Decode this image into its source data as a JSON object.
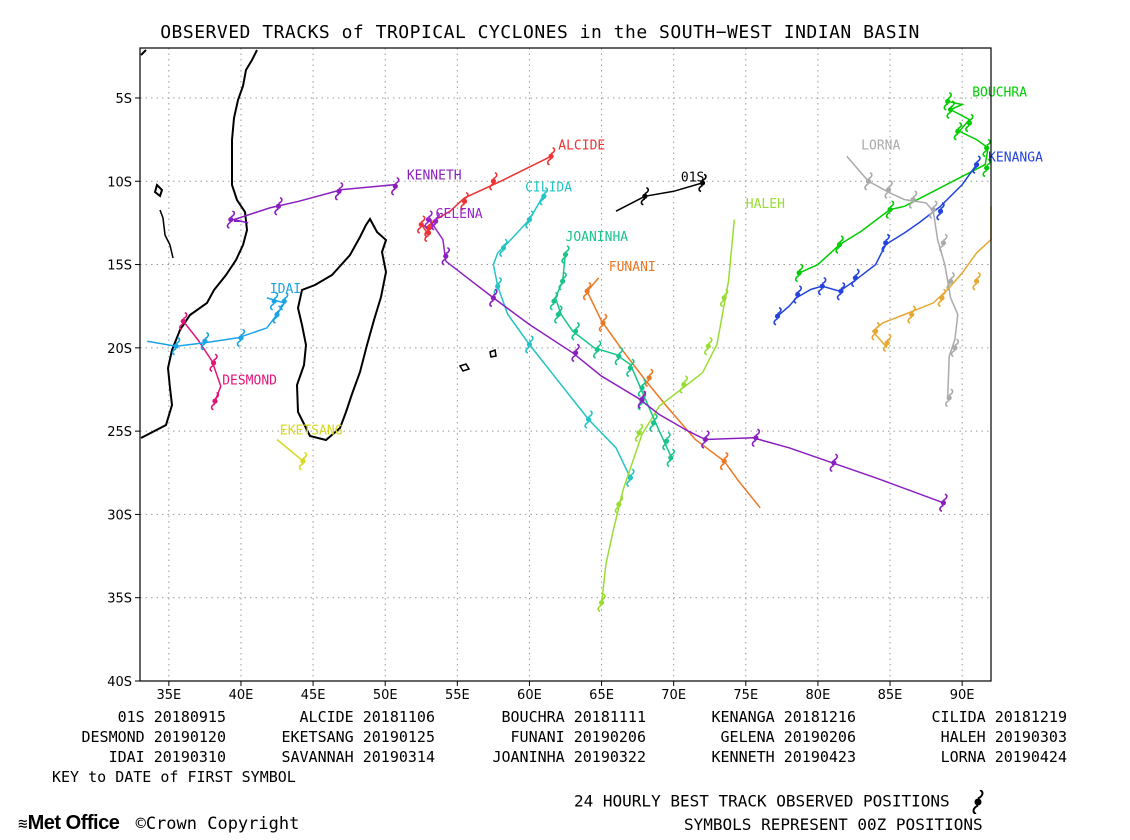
{
  "title": "OBSERVED TRACKS of TROPICAL CYCLONES in the SOUTH−WEST INDIAN BASIN",
  "axes": {
    "lon_range": [
      33,
      92
    ],
    "lat_range": [
      -40,
      -2
    ],
    "lon_ticks": [
      {
        "v": 35,
        "label": "35E"
      },
      {
        "v": 40,
        "label": "40E"
      },
      {
        "v": 45,
        "label": "45E"
      },
      {
        "v": 50,
        "label": "50E"
      },
      {
        "v": 55,
        "label": "55E"
      },
      {
        "v": 60,
        "label": "60E"
      },
      {
        "v": 65,
        "label": "65E"
      },
      {
        "v": 70,
        "label": "70E"
      },
      {
        "v": 75,
        "label": "75E"
      },
      {
        "v": 80,
        "label": "80E"
      },
      {
        "v": 85,
        "label": "85E"
      },
      {
        "v": 90,
        "label": "90E"
      }
    ],
    "lat_ticks": [
      {
        "v": -5,
        "label": "5S"
      },
      {
        "v": -10,
        "label": "10S"
      },
      {
        "v": -15,
        "label": "15S"
      },
      {
        "v": -20,
        "label": "20S"
      },
      {
        "v": -25,
        "label": "25S"
      },
      {
        "v": -30,
        "label": "30S"
      },
      {
        "v": -35,
        "label": "35S"
      },
      {
        "v": -40,
        "label": "40S"
      }
    ],
    "grid": "dotted"
  },
  "chart_data": {
    "type": "map-tracks",
    "storms": [
      {
        "name": "01S",
        "color": "#000000",
        "label_at": [
          70.5,
          -9.7
        ],
        "track": [
          [
            66,
            -11.8
          ],
          [
            68,
            -10.9
          ],
          [
            70,
            -10.6
          ],
          [
            72,
            -10.1
          ]
        ],
        "symbols": [
          [
            68,
            -10.9
          ],
          [
            72,
            -10.1
          ]
        ]
      },
      {
        "name": "ALCIDE",
        "color": "#ee3333",
        "label_at": [
          62,
          -7.8
        ],
        "track": [
          [
            61.5,
            -8.5
          ],
          [
            58,
            -10
          ],
          [
            55.5,
            -11
          ],
          [
            54.5,
            -11.8
          ],
          [
            53.5,
            -12.3
          ],
          [
            53,
            -12.8
          ],
          [
            52.5,
            -12.6
          ],
          [
            53,
            -13.2
          ]
        ],
        "symbols": [
          [
            61.5,
            -8.5
          ],
          [
            57.5,
            -10
          ],
          [
            55.5,
            -11.2
          ],
          [
            53,
            -12.8
          ],
          [
            52.5,
            -12.6
          ],
          [
            53,
            -13.1
          ]
        ]
      },
      {
        "name": "BOUCHRA",
        "color": "#00cc00",
        "label_at": [
          90.7,
          -4.6
        ],
        "track": [
          [
            89,
            -5.2
          ],
          [
            90,
            -5.4
          ],
          [
            89.2,
            -5.7
          ],
          [
            90.5,
            -6.3
          ],
          [
            89.8,
            -7
          ],
          [
            91,
            -7.5
          ],
          [
            91.8,
            -8
          ],
          [
            91.6,
            -9
          ],
          [
            86,
            -11.5
          ],
          [
            85,
            -11.7
          ],
          [
            83,
            -13
          ],
          [
            81.5,
            -13.8
          ],
          [
            80,
            -15
          ],
          [
            78.7,
            -15.5
          ]
        ],
        "symbols": [
          [
            89,
            -5.2
          ],
          [
            89.2,
            -5.7
          ],
          [
            90.5,
            -6.5
          ],
          [
            89.7,
            -7
          ],
          [
            91.7,
            -8
          ],
          [
            91.7,
            -9.2
          ],
          [
            85,
            -11.7
          ],
          [
            81.5,
            -13.8
          ],
          [
            78.7,
            -15.5
          ]
        ]
      },
      {
        "name": "CILIDA",
        "color": "#22c4c4",
        "label_at": [
          59.7,
          -10.3
        ],
        "track": [
          [
            61,
            -10.8
          ],
          [
            60,
            -12.3
          ],
          [
            58.5,
            -13.7
          ],
          [
            57.8,
            -14.3
          ],
          [
            57.5,
            -15
          ],
          [
            57.8,
            -16.3
          ],
          [
            58.5,
            -18
          ],
          [
            60,
            -19.8
          ],
          [
            62,
            -22
          ],
          [
            64.1,
            -24.3
          ],
          [
            66,
            -26
          ],
          [
            67,
            -27.8
          ]
        ],
        "symbols": [
          [
            61,
            -10.9
          ],
          [
            60,
            -12.3
          ],
          [
            58.2,
            -14
          ],
          [
            57.8,
            -16.3
          ],
          [
            60,
            -19.8
          ],
          [
            64.1,
            -24.3
          ],
          [
            67,
            -27.8
          ]
        ]
      },
      {
        "name": "DESMOND",
        "color": "#e0157a",
        "label_at": [
          38.7,
          -21.9
        ],
        "track": [
          [
            36,
            -18.4
          ],
          [
            37,
            -19.5
          ],
          [
            38,
            -20.8
          ],
          [
            38.6,
            -22.3
          ],
          [
            38.2,
            -23.2
          ]
        ],
        "symbols": [
          [
            36,
            -18.4
          ],
          [
            38.1,
            -20.9
          ],
          [
            38.2,
            -23.2
          ]
        ]
      },
      {
        "name": "EKETSANG",
        "color": "#d8d820",
        "label_at": [
          42.7,
          -24.9
        ],
        "track": [
          [
            42.5,
            -25.5
          ],
          [
            44.3,
            -26.8
          ]
        ],
        "symbols": [
          [
            44.3,
            -26.8
          ]
        ]
      },
      {
        "name": "FUNANI",
        "color": "#ee7722",
        "label_at": [
          65.5,
          -15.1
        ],
        "track": [
          [
            64.8,
            -15.8
          ],
          [
            64,
            -16.6
          ],
          [
            65,
            -18.4
          ],
          [
            66.5,
            -20.2
          ],
          [
            68,
            -21.9
          ],
          [
            69.5,
            -23.5
          ],
          [
            71.5,
            -25.5
          ],
          [
            73.5,
            -26.8
          ],
          [
            74.5,
            -28
          ],
          [
            76,
            -29.6
          ]
        ],
        "symbols": [
          [
            64,
            -16.6
          ],
          [
            65.1,
            -18.5
          ],
          [
            68.3,
            -21.8
          ],
          [
            73.5,
            -26.8
          ]
        ]
      },
      {
        "name": "GELENA",
        "color": "#9922cc",
        "label_at": [
          53.5,
          -11.9
        ],
        "track": [
          [
            53,
            -12.3
          ],
          [
            53.3,
            -12.6
          ],
          [
            54,
            -13.5
          ],
          [
            54.2,
            -14.8
          ]
        ],
        "symbols": [
          [
            53,
            -12.3
          ],
          [
            53.5,
            -12.4
          ]
        ]
      },
      {
        "name": "HALEH",
        "color": "#99dd33",
        "label_at": [
          75,
          -11.3
        ],
        "track": [
          [
            74.2,
            -12.3
          ],
          [
            73.8,
            -16
          ],
          [
            73,
            -19.8
          ],
          [
            72,
            -21.5
          ],
          [
            70.8,
            -22.3
          ],
          [
            69,
            -23.5
          ],
          [
            67.8,
            -25.2
          ],
          [
            66.5,
            -28.5
          ],
          [
            65.8,
            -31
          ],
          [
            65.3,
            -33
          ],
          [
            65,
            -35.3
          ]
        ],
        "symbols": [
          [
            73.5,
            -17
          ],
          [
            72.4,
            -19.9
          ],
          [
            70.7,
            -22.2
          ],
          [
            67.6,
            -25.1
          ],
          [
            66.2,
            -29.4
          ],
          [
            65,
            -35.3
          ]
        ]
      },
      {
        "name": "IDAI",
        "color": "#1aa3e6",
        "label_at": [
          42,
          -16.4
        ],
        "track": [
          [
            41.8,
            -17
          ],
          [
            43,
            -17.3
          ],
          [
            42.8,
            -17.6
          ],
          [
            42.5,
            -18
          ],
          [
            41.8,
            -18.8
          ],
          [
            39.8,
            -19.4
          ],
          [
            37.5,
            -19.7
          ],
          [
            35.5,
            -19.9
          ],
          [
            33.5,
            -19.6
          ]
        ],
        "symbols": [
          [
            42.3,
            -17.2
          ],
          [
            43,
            -17.2
          ],
          [
            42.5,
            -18
          ],
          [
            40,
            -19.4
          ],
          [
            37.5,
            -19.6
          ],
          [
            35.5,
            -19.9
          ]
        ]
      },
      {
        "name": "JOANINHA",
        "color": "#18c48c",
        "label_at": [
          62.5,
          -13.3
        ],
        "track": [
          [
            62.5,
            -14.3
          ],
          [
            62.3,
            -16
          ],
          [
            61.8,
            -17
          ],
          [
            62.2,
            -18
          ],
          [
            63,
            -19
          ],
          [
            64.5,
            -20
          ],
          [
            66,
            -20.4
          ],
          [
            67,
            -21
          ],
          [
            68,
            -23
          ],
          [
            69,
            -25
          ],
          [
            69.8,
            -26.5
          ]
        ],
        "symbols": [
          [
            62.5,
            -14.4
          ],
          [
            62.3,
            -16
          ],
          [
            61.7,
            -17.2
          ],
          [
            62,
            -18
          ],
          [
            63.2,
            -19
          ],
          [
            64.7,
            -20.1
          ],
          [
            66.2,
            -20.5
          ],
          [
            67,
            -21.2
          ],
          [
            67.8,
            -22.4
          ],
          [
            67.8,
            -23.2
          ],
          [
            68.6,
            -24.5
          ],
          [
            69.5,
            -25.6
          ],
          [
            69.8,
            -26.6
          ]
        ]
      },
      {
        "name": "KENANGA",
        "color": "#2244dd",
        "label_at": [
          91.8,
          -8.5
        ],
        "track": [
          [
            91,
            -9
          ],
          [
            90,
            -10.2
          ],
          [
            88.5,
            -11.5
          ],
          [
            87,
            -12.5
          ],
          [
            86,
            -13.1
          ],
          [
            84.7,
            -13.8
          ],
          [
            84,
            -15
          ],
          [
            82.5,
            -16
          ],
          [
            81.5,
            -16.6
          ],
          [
            80.3,
            -16.3
          ],
          [
            79.5,
            -16.5
          ],
          [
            78.5,
            -17
          ],
          [
            78,
            -17.5
          ],
          [
            77.2,
            -18.1
          ]
        ],
        "symbols": [
          [
            91,
            -9
          ],
          [
            88.5,
            -11.8
          ],
          [
            84.7,
            -13.7
          ],
          [
            82.6,
            -15.8
          ],
          [
            81.6,
            -16.6
          ],
          [
            80.3,
            -16.3
          ],
          [
            78.6,
            -16.8
          ],
          [
            77.2,
            -18.1
          ]
        ]
      },
      {
        "name": "KENNETH",
        "color": "#8a1fbf",
        "label_at": [
          51.5,
          -9.6
        ],
        "track": [
          [
            50.7,
            -10.2
          ],
          [
            47,
            -10.5
          ],
          [
            44,
            -11.2
          ],
          [
            42,
            -11.6
          ],
          [
            39.5,
            -12.3
          ],
          [
            40.5,
            -12.5
          ],
          [
            40,
            -12.4
          ],
          [
            39.5,
            -12.4
          ]
        ],
        "symbols": [
          [
            50.7,
            -10.3
          ],
          [
            46.8,
            -10.6
          ],
          [
            42.6,
            -11.5
          ],
          [
            39.3,
            -12.3
          ]
        ]
      },
      {
        "name": "LORNA",
        "color": "#aaaaaa",
        "label_at": [
          83,
          -7.8
        ],
        "track": [
          [
            82,
            -8.5
          ],
          [
            83.5,
            -10
          ],
          [
            85,
            -10.7
          ],
          [
            86,
            -11.1
          ],
          [
            87.5,
            -11.3
          ],
          [
            88,
            -11.8
          ],
          [
            88.3,
            -13.5
          ],
          [
            88.8,
            -15
          ],
          [
            89.2,
            -17
          ],
          [
            89.7,
            -18
          ],
          [
            89.5,
            -19.5
          ],
          [
            89.1,
            -20.5
          ],
          [
            89,
            -23
          ]
        ],
        "symbols": [
          [
            83.5,
            -10
          ],
          [
            84.9,
            -10.5
          ],
          [
            86.6,
            -11.1
          ],
          [
            88,
            -11.7
          ],
          [
            88.7,
            -13.7
          ],
          [
            89.2,
            -16
          ],
          [
            89.5,
            -20
          ],
          [
            89.1,
            -23
          ]
        ]
      },
      {
        "name": "SAVANNAH",
        "color": "#e6a833",
        "label_at": null,
        "track": [
          [
            93,
            -11.5
          ],
          [
            92.5,
            -12.5
          ],
          [
            92,
            -13.5
          ],
          [
            91,
            -14.3
          ],
          [
            90,
            -15.5
          ],
          [
            89,
            -16.5
          ],
          [
            88,
            -17.3
          ],
          [
            86,
            -18
          ],
          [
            84.5,
            -18.5
          ],
          [
            83.8,
            -19
          ],
          [
            84.3,
            -19.5
          ],
          [
            84.8,
            -20
          ]
        ],
        "symbols": [
          [
            91,
            -16
          ],
          [
            88.6,
            -17
          ],
          [
            86.5,
            -18
          ],
          [
            84,
            -19
          ],
          [
            84.8,
            -19.7
          ]
        ]
      },
      {
        "name": "GELENA_main",
        "color": "#8a1fbf",
        "label_at": null,
        "track": [
          [
            54.2,
            -14.8
          ],
          [
            56,
            -16
          ],
          [
            57.5,
            -17
          ],
          [
            60,
            -18.6
          ],
          [
            63,
            -20.3
          ],
          [
            65,
            -21.7
          ],
          [
            67.5,
            -23
          ],
          [
            69,
            -24
          ],
          [
            71,
            -25
          ],
          [
            72.2,
            -25.5
          ],
          [
            75.5,
            -25.4
          ],
          [
            78,
            -26
          ],
          [
            81,
            -26.9
          ],
          [
            84,
            -27.8
          ],
          [
            88.7,
            -29.3
          ]
        ],
        "symbols": [
          [
            54.2,
            -14.5
          ],
          [
            57.5,
            -17
          ],
          [
            63.2,
            -20.3
          ],
          [
            67.8,
            -23.1
          ],
          [
            72.2,
            -25.5
          ],
          [
            75.7,
            -25.4
          ],
          [
            81.1,
            -26.9
          ],
          [
            88.7,
            -29.3
          ]
        ]
      }
    ],
    "key": [
      [
        "01S 20180915",
        "ALCIDE 20181106",
        "BOUCHRA 20181111",
        "KENANGA 20181216",
        "CILIDA 20181219"
      ],
      [
        "DESMOND 20190120",
        "EKETSANG 20190125",
        "FUNANI 20190206",
        "GELENA 20190206",
        "HALEH 20190303"
      ],
      [
        "IDAI 20190310",
        "SAVANNAH 20190314",
        "JOANINHA 20190322",
        "KENNETH 20190423",
        "LORNA 20190424"
      ]
    ]
  },
  "key_caption": "KEY to DATE of FIRST SYMBOL",
  "footer": {
    "brand": "Met Office",
    "copyright": "©Crown Copyright",
    "line1": "24 HOURLY BEST TRACK OBSERVED POSITIONS",
    "line2": "SYMBOLS REPRESENT 00Z POSITIONS"
  }
}
